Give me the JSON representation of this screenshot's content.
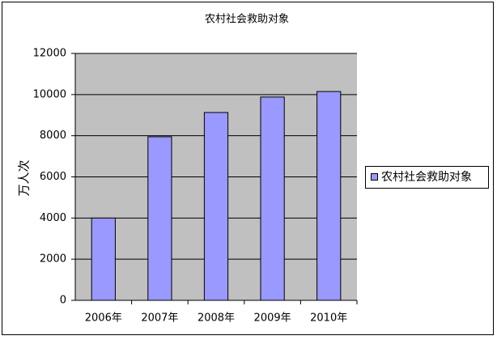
{
  "chart_data": {
    "type": "bar",
    "title": "农村社会救助对象",
    "y_label": "万人次",
    "categories": [
      "2006年",
      "2007年",
      "2008年",
      "2009年",
      "2010年"
    ],
    "series": [
      {
        "name": "农村社会救助对象",
        "color": "#9999ff",
        "values": [
          4000,
          7950,
          9130,
          9880,
          10150
        ]
      }
    ],
    "ylim": [
      0,
      12000
    ],
    "yticks": [
      0,
      2000,
      4000,
      6000,
      8000,
      10000,
      12000
    ],
    "grid": true,
    "legend": "right"
  }
}
